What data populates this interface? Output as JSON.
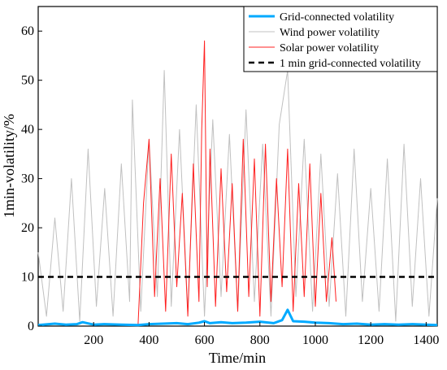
{
  "chart_data": {
    "type": "line",
    "title": "",
    "xlabel": "Time/min",
    "ylabel": "1min-volatility/%",
    "xlim": [
      0,
      1440
    ],
    "ylim": [
      0,
      65
    ],
    "x_ticks": [
      200,
      400,
      600,
      800,
      1000,
      1200,
      1400
    ],
    "y_ticks": [
      0,
      10,
      20,
      30,
      40,
      50,
      60
    ],
    "grid": false,
    "legend_position": "top-right",
    "series": [
      {
        "name": "Grid-connected volatility",
        "color": "#00aaff",
        "style": "solid-thick",
        "x": [
          0,
          60,
          100,
          140,
          160,
          200,
          240,
          300,
          360,
          400,
          450,
          500,
          540,
          580,
          600,
          620,
          660,
          700,
          750,
          800,
          850,
          880,
          900,
          920,
          960,
          1000,
          1050,
          1100,
          1150,
          1200,
          1250,
          1300,
          1350,
          1400,
          1440
        ],
        "values": [
          0.2,
          0.5,
          0.3,
          0.4,
          0.8,
          0.3,
          0.4,
          0.3,
          0.2,
          0.4,
          0.5,
          0.6,
          0.4,
          0.7,
          1.0,
          0.6,
          0.8,
          0.6,
          0.7,
          0.9,
          0.6,
          1.2,
          3.3,
          1.0,
          0.9,
          0.7,
          0.6,
          0.4,
          0.5,
          0.3,
          0.4,
          0.3,
          0.4,
          0.3,
          0.2
        ]
      },
      {
        "name": "Wind power volatility",
        "color": "#c0c0c0",
        "style": "thin",
        "x": [
          0,
          30,
          60,
          90,
          120,
          150,
          180,
          210,
          240,
          270,
          300,
          330,
          340,
          370,
          400,
          430,
          455,
          480,
          510,
          540,
          570,
          600,
          630,
          660,
          690,
          720,
          750,
          780,
          810,
          840,
          870,
          900,
          930,
          960,
          990,
          1020,
          1050,
          1080,
          1110,
          1140,
          1170,
          1200,
          1230,
          1260,
          1290,
          1320,
          1350,
          1380,
          1410,
          1440
        ],
        "values": [
          15,
          2,
          22,
          3,
          30,
          1,
          36,
          4,
          28,
          2,
          33,
          5,
          46,
          3,
          38,
          6,
          52,
          4,
          40,
          3,
          45,
          2,
          42,
          6,
          39,
          3,
          44,
          5,
          37,
          2,
          41,
          52,
          6,
          38,
          3,
          35,
          4,
          31,
          2,
          36,
          5,
          28,
          3,
          34,
          1,
          37,
          4,
          30,
          2,
          26
        ]
      },
      {
        "name": "Solar power volatility",
        "color": "#ff2020",
        "style": "thin",
        "x": [
          360,
          380,
          400,
          420,
          440,
          460,
          480,
          500,
          520,
          540,
          560,
          580,
          590,
          600,
          610,
          620,
          640,
          660,
          680,
          700,
          720,
          740,
          760,
          780,
          800,
          820,
          840,
          860,
          880,
          900,
          920,
          940,
          960,
          980,
          1000,
          1020,
          1040,
          1060,
          1075
        ],
        "values": [
          0,
          25,
          38,
          6,
          30,
          3,
          35,
          8,
          27,
          2,
          33,
          5,
          40,
          58,
          8,
          36,
          4,
          32,
          7,
          29,
          3,
          38,
          6,
          34,
          2,
          37,
          5,
          30,
          8,
          36,
          3,
          29,
          6,
          33,
          4,
          27,
          5,
          18,
          5
        ]
      },
      {
        "name": "1 min grid-connected volatility",
        "color": "#000000",
        "style": "dashed",
        "x": [
          0,
          1440
        ],
        "values": [
          10,
          10
        ]
      }
    ]
  }
}
